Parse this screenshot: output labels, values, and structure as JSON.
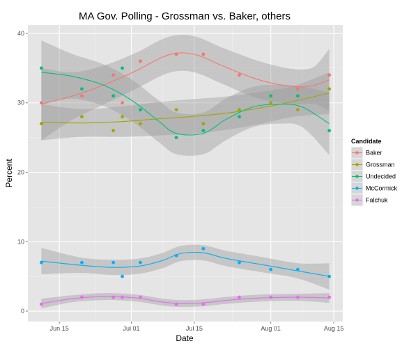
{
  "chart_data": {
    "type": "line",
    "title": "MA Gov. Polling - Grossman vs. Baker, others",
    "xlabel": "Date",
    "ylabel": "Percent",
    "x_date_range": [
      "2014-06-08",
      "2014-08-17"
    ],
    "ylim": [
      -1.5,
      41.2
    ],
    "x_ticks": [
      {
        "date": "2014-06-15",
        "label": "Jun 15"
      },
      {
        "date": "2014-07-01",
        "label": "Jul 01"
      },
      {
        "date": "2014-07-15",
        "label": "Jul 15"
      },
      {
        "date": "2014-08-01",
        "label": "Aug 01"
      },
      {
        "date": "2014-08-15",
        "label": "Aug 15"
      }
    ],
    "y_ticks": [
      0,
      10,
      20,
      30,
      40
    ],
    "grid": true,
    "legend": {
      "title": "Candidate",
      "placement": "right"
    },
    "series": [
      {
        "name": "Baker",
        "color": "#F8766D",
        "points": [
          [
            "2014-06-11",
            30
          ],
          [
            "2014-06-20",
            31
          ],
          [
            "2014-06-27",
            34
          ],
          [
            "2014-06-29",
            30
          ],
          [
            "2014-07-03",
            36
          ],
          [
            "2014-07-11",
            37
          ],
          [
            "2014-07-17",
            37
          ],
          [
            "2014-07-25",
            34
          ],
          [
            "2014-08-07",
            32
          ],
          [
            "2014-08-14",
            34
          ]
        ],
        "fit": [
          [
            "2014-06-11",
            29.8
          ],
          [
            "2014-06-18",
            31.0
          ],
          [
            "2014-06-25",
            32.6
          ],
          [
            "2014-07-02",
            34.6
          ],
          [
            "2014-07-08",
            36.6
          ],
          [
            "2014-07-12",
            37.2
          ],
          [
            "2014-07-16",
            36.8
          ],
          [
            "2014-07-21",
            35.4
          ],
          [
            "2014-07-28",
            33.6
          ],
          [
            "2014-08-03",
            32.6
          ],
          [
            "2014-08-08",
            32.3
          ],
          [
            "2014-08-11",
            32.6
          ],
          [
            "2014-08-14",
            33.3
          ]
        ],
        "band_halfwidth": [
          5.2,
          3.4,
          2.8,
          2.6,
          2.6,
          2.6,
          2.6,
          2.6,
          2.7,
          2.6,
          2.5,
          2.8,
          4.5
        ]
      },
      {
        "name": "Grossman",
        "color": "#A3A500",
        "points": [
          [
            "2014-06-11",
            27
          ],
          [
            "2014-06-20",
            28
          ],
          [
            "2014-06-27",
            26
          ],
          [
            "2014-06-29",
            28
          ],
          [
            "2014-07-03",
            27
          ],
          [
            "2014-07-11",
            29
          ],
          [
            "2014-07-17",
            27
          ],
          [
            "2014-07-25",
            29
          ],
          [
            "2014-08-01",
            30
          ],
          [
            "2014-08-07",
            29
          ],
          [
            "2014-08-14",
            32
          ]
        ],
        "fit": [
          [
            "2014-06-11",
            27.2
          ],
          [
            "2014-06-20",
            27.1
          ],
          [
            "2014-06-29",
            27.3
          ],
          [
            "2014-07-07",
            27.7
          ],
          [
            "2014-07-14",
            28.0
          ],
          [
            "2014-07-22",
            28.5
          ],
          [
            "2014-07-30",
            29.3
          ],
          [
            "2014-08-06",
            30.2
          ],
          [
            "2014-08-14",
            31.4
          ]
        ],
        "band_halfwidth": [
          2.6,
          2.0,
          2.2,
          2.4,
          2.5,
          2.4,
          2.3,
          2.2,
          3.0
        ]
      },
      {
        "name": "Undecided",
        "color": "#00BF7D",
        "points": [
          [
            "2014-06-11",
            35
          ],
          [
            "2014-06-20",
            32
          ],
          [
            "2014-06-27",
            31
          ],
          [
            "2014-06-29",
            35
          ],
          [
            "2014-07-03",
            29
          ],
          [
            "2014-07-11",
            25
          ],
          [
            "2014-07-17",
            26
          ],
          [
            "2014-07-25",
            28
          ],
          [
            "2014-08-01",
            31
          ],
          [
            "2014-08-07",
            31
          ],
          [
            "2014-08-14",
            26
          ]
        ],
        "fit": [
          [
            "2014-06-11",
            34.4
          ],
          [
            "2014-06-18",
            33.8
          ],
          [
            "2014-06-25",
            32.5
          ],
          [
            "2014-07-01",
            30.4
          ],
          [
            "2014-07-07",
            27.4
          ],
          [
            "2014-07-11",
            25.6
          ],
          [
            "2014-07-17",
            25.6
          ],
          [
            "2014-07-22",
            27.6
          ],
          [
            "2014-07-28",
            29.4
          ],
          [
            "2014-08-03",
            29.8
          ],
          [
            "2014-08-08",
            29.4
          ],
          [
            "2014-08-14",
            27.0
          ]
        ],
        "band_halfwidth": [
          4.6,
          3.2,
          3.0,
          3.0,
          3.0,
          3.0,
          3.0,
          3.0,
          2.9,
          2.8,
          2.9,
          4.5
        ]
      },
      {
        "name": "McCormick",
        "color": "#00B0F6",
        "points": [
          [
            "2014-06-11",
            7
          ],
          [
            "2014-06-20",
            7
          ],
          [
            "2014-06-27",
            7
          ],
          [
            "2014-06-29",
            5
          ],
          [
            "2014-07-03",
            7
          ],
          [
            "2014-07-11",
            8
          ],
          [
            "2014-07-17",
            9
          ],
          [
            "2014-07-25",
            7
          ],
          [
            "2014-08-01",
            6
          ],
          [
            "2014-08-07",
            6
          ],
          [
            "2014-08-14",
            5
          ]
        ],
        "fit": [
          [
            "2014-06-11",
            7.2
          ],
          [
            "2014-06-20",
            6.6
          ],
          [
            "2014-06-27",
            6.3
          ],
          [
            "2014-07-03",
            6.5
          ],
          [
            "2014-07-08",
            7.3
          ],
          [
            "2014-07-12",
            8.3
          ],
          [
            "2014-07-17",
            8.4
          ],
          [
            "2014-07-22",
            7.6
          ],
          [
            "2014-07-30",
            6.7
          ],
          [
            "2014-08-07",
            5.8
          ],
          [
            "2014-08-14",
            5.0
          ]
        ],
        "band_halfwidth": [
          1.9,
          1.1,
          1.1,
          1.1,
          1.1,
          1.1,
          1.1,
          1.1,
          1.1,
          1.1,
          1.9
        ]
      },
      {
        "name": "Falchuk",
        "color": "#E76BF3",
        "points": [
          [
            "2014-06-11",
            1
          ],
          [
            "2014-06-20",
            2
          ],
          [
            "2014-06-27",
            2
          ],
          [
            "2014-06-29",
            2
          ],
          [
            "2014-07-03",
            2
          ],
          [
            "2014-07-11",
            1
          ],
          [
            "2014-07-17",
            1
          ],
          [
            "2014-07-25",
            2
          ],
          [
            "2014-08-01",
            2
          ],
          [
            "2014-08-07",
            2
          ],
          [
            "2014-08-14",
            2
          ]
        ],
        "fit": [
          [
            "2014-06-11",
            1.1
          ],
          [
            "2014-06-18",
            1.8
          ],
          [
            "2014-06-25",
            2.1
          ],
          [
            "2014-07-02",
            1.9
          ],
          [
            "2014-07-08",
            1.3
          ],
          [
            "2014-07-12",
            1.1
          ],
          [
            "2014-07-17",
            1.2
          ],
          [
            "2014-07-23",
            1.6
          ],
          [
            "2014-07-30",
            1.9
          ],
          [
            "2014-08-07",
            2.0
          ],
          [
            "2014-08-14",
            1.9
          ]
        ],
        "band_halfwidth": [
          0.7,
          0.5,
          0.5,
          0.5,
          0.5,
          0.5,
          0.5,
          0.5,
          0.5,
          0.5,
          0.7
        ]
      }
    ]
  }
}
